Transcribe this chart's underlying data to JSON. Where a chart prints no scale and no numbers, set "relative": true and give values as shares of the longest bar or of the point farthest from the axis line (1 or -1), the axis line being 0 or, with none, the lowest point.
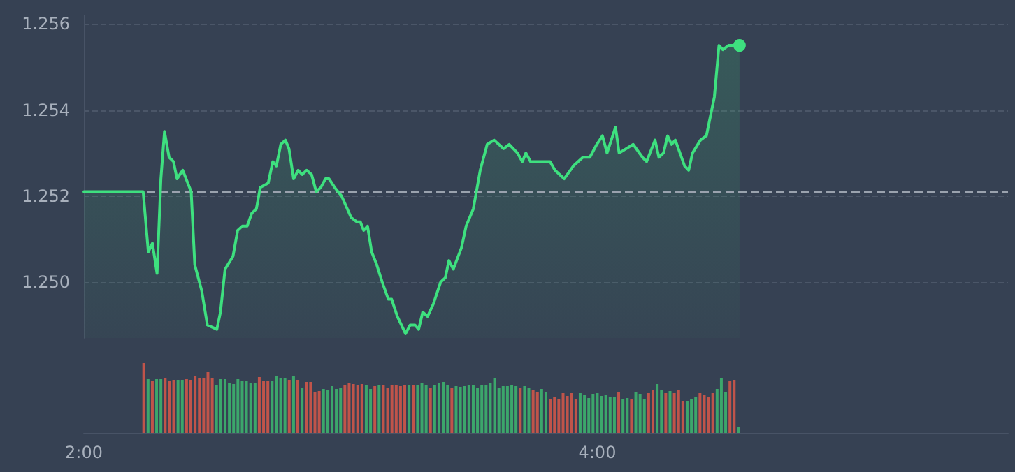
{
  "chart_data": [
    {
      "type": "area",
      "color": "#3ee07f",
      "tick_labels": "y",
      "grid": "y",
      "line_style": "solid",
      "xlim": [
        2,
        5.6
      ],
      "ylim": [
        1.2487,
        1.2562
      ],
      "yticks": [
        {
          "value": 1.25,
          "label": "1.250"
        },
        1.252,
        1.254,
        1.256
      ],
      "x": [
        2.0,
        2.231,
        2.251,
        2.267,
        2.285,
        2.3,
        2.314,
        2.332,
        2.349,
        2.363,
        2.385,
        2.418,
        2.432,
        2.459,
        2.481,
        2.518,
        2.532,
        2.55,
        2.581,
        2.599,
        2.617,
        2.636,
        2.654,
        2.672,
        2.687,
        2.718,
        2.736,
        2.75,
        2.767,
        2.785,
        2.799,
        2.817,
        2.835,
        2.85,
        2.868,
        2.887,
        2.905,
        2.923,
        2.941,
        2.955,
        2.977,
        3.004,
        3.041,
        3.063,
        3.077,
        3.09,
        3.105,
        3.121,
        3.141,
        3.162,
        3.186,
        3.199,
        3.221,
        3.253,
        3.271,
        3.29,
        3.304,
        3.32,
        3.339,
        3.362,
        3.39,
        3.408,
        3.422,
        3.439,
        3.471,
        3.489,
        3.517,
        3.544,
        3.571,
        3.598,
        3.635,
        3.657,
        3.689,
        3.708,
        3.722,
        3.74,
        3.771,
        3.789,
        3.816,
        3.835,
        3.871,
        3.907,
        3.944,
        3.971,
        3.998,
        4.02,
        4.038,
        4.071,
        4.085,
        4.14,
        4.176,
        4.192,
        4.225,
        4.24,
        4.258,
        4.274,
        4.289,
        4.304,
        4.322,
        4.34,
        4.356,
        4.371,
        4.402,
        4.425,
        4.456,
        4.474,
        4.489,
        4.511,
        4.554
      ],
      "values": [
        1.2521,
        1.2521,
        1.2507,
        1.2509,
        1.2502,
        1.2524,
        1.2535,
        1.2529,
        1.2528,
        1.2524,
        1.2526,
        1.2521,
        1.2504,
        1.2498,
        1.249,
        1.2489,
        1.2493,
        1.2503,
        1.2506,
        1.2512,
        1.2513,
        1.2513,
        1.2516,
        1.2517,
        1.2522,
        1.2523,
        1.2528,
        1.2527,
        1.2532,
        1.2533,
        1.2531,
        1.2524,
        1.2526,
        1.2525,
        1.2526,
        1.2525,
        1.2521,
        1.2522,
        1.2524,
        1.2524,
        1.2522,
        1.252,
        1.2515,
        1.2514,
        1.2514,
        1.2512,
        1.2513,
        1.2507,
        1.2504,
        1.25,
        1.2496,
        1.2496,
        1.2492,
        1.2488,
        1.249,
        1.249,
        1.2489,
        1.2493,
        1.2492,
        1.2495,
        1.25,
        1.2501,
        1.2505,
        1.2503,
        1.2508,
        1.2513,
        1.2517,
        1.2526,
        1.2532,
        1.2533,
        1.2531,
        1.2532,
        1.253,
        1.2528,
        1.253,
        1.2528,
        1.2528,
        1.2528,
        1.2528,
        1.2526,
        1.2524,
        1.2527,
        1.2529,
        1.2529,
        1.2532,
        1.2534,
        1.253,
        1.2536,
        1.253,
        1.2532,
        1.2529,
        1.2528,
        1.2533,
        1.2529,
        1.253,
        1.2534,
        1.2532,
        1.2533,
        1.253,
        1.2527,
        1.2526,
        1.253,
        1.2533,
        1.2534,
        1.2543,
        1.2555,
        1.2554,
        1.2555,
        1.2555
      ],
      "ref_lines": [
        {
          "axis": "y",
          "value": 1.2521,
          "color": "#9aa2ae",
          "line_style": "dashed"
        }
      ]
    },
    {
      "type": "bar",
      "relative": true,
      "tick_labels": "x",
      "xlim": [
        2,
        5.6
      ],
      "xticks": [
        {
          "value": 2,
          "label": "2:00"
        },
        {
          "value": 4,
          "label": "4:00"
        }
      ],
      "x": [
        2.2333,
        2.25,
        2.2667,
        2.2833,
        2.3,
        2.3167,
        2.3333,
        2.35,
        2.3667,
        2.3833,
        2.4,
        2.4167,
        2.4333,
        2.45,
        2.4667,
        2.4833,
        2.5,
        2.5167,
        2.5333,
        2.55,
        2.5667,
        2.5833,
        2.6,
        2.6167,
        2.6333,
        2.65,
        2.6667,
        2.6833,
        2.7,
        2.7167,
        2.7333,
        2.75,
        2.7667,
        2.7833,
        2.8,
        2.8167,
        2.8333,
        2.85,
        2.8667,
        2.8833,
        2.9,
        2.9167,
        2.9333,
        2.95,
        2.9667,
        2.9833,
        3,
        3.0167,
        3.0333,
        3.05,
        3.0667,
        3.0833,
        3.1,
        3.1167,
        3.1333,
        3.15,
        3.1667,
        3.1833,
        3.2,
        3.2167,
        3.2333,
        3.25,
        3.2667,
        3.2833,
        3.3,
        3.3167,
        3.3333,
        3.35,
        3.3667,
        3.3833,
        3.4,
        3.4167,
        3.4333,
        3.45,
        3.4667,
        3.4833,
        3.5,
        3.5167,
        3.5333,
        3.55,
        3.5667,
        3.5833,
        3.6,
        3.6167,
        3.6333,
        3.65,
        3.6667,
        3.6833,
        3.7,
        3.7167,
        3.7333,
        3.75,
        3.7667,
        3.7833,
        3.8,
        3.8167,
        3.8333,
        3.85,
        3.8667,
        3.8833,
        3.9,
        3.9167,
        3.9333,
        3.95,
        3.9667,
        3.9833,
        4,
        4.0167,
        4.0333,
        4.05,
        4.0667,
        4.0833,
        4.1,
        4.1167,
        4.1333,
        4.15,
        4.1667,
        4.1833,
        4.2,
        4.2167,
        4.2333,
        4.25,
        4.2667,
        4.2833,
        4.3,
        4.3167,
        4.3333,
        4.35,
        4.3667,
        4.3833,
        4.4,
        4.4167,
        4.4333,
        4.45,
        4.4667,
        4.4833,
        4.5,
        4.5167,
        4.5333,
        4.55
      ],
      "values": [
        1,
        0.77,
        0.74,
        0.77,
        0.77,
        0.79,
        0.75,
        0.76,
        0.76,
        0.76,
        0.77,
        0.76,
        0.81,
        0.78,
        0.78,
        0.87,
        0.79,
        0.69,
        0.77,
        0.77,
        0.72,
        0.7,
        0.77,
        0.74,
        0.74,
        0.72,
        0.72,
        0.8,
        0.74,
        0.74,
        0.74,
        0.81,
        0.78,
        0.78,
        0.76,
        0.82,
        0.76,
        0.65,
        0.73,
        0.73,
        0.58,
        0.6,
        0.63,
        0.62,
        0.67,
        0.63,
        0.65,
        0.69,
        0.72,
        0.7,
        0.69,
        0.7,
        0.68,
        0.63,
        0.67,
        0.69,
        0.69,
        0.64,
        0.68,
        0.68,
        0.67,
        0.69,
        0.68,
        0.69,
        0.69,
        0.71,
        0.69,
        0.65,
        0.68,
        0.72,
        0.73,
        0.69,
        0.65,
        0.67,
        0.66,
        0.67,
        0.69,
        0.68,
        0.65,
        0.68,
        0.69,
        0.72,
        0.78,
        0.64,
        0.67,
        0.67,
        0.68,
        0.67,
        0.64,
        0.67,
        0.65,
        0.61,
        0.58,
        0.63,
        0.58,
        0.48,
        0.51,
        0.48,
        0.57,
        0.53,
        0.57,
        0.48,
        0.57,
        0.54,
        0.5,
        0.56,
        0.57,
        0.53,
        0.54,
        0.52,
        0.51,
        0.59,
        0.49,
        0.5,
        0.48,
        0.59,
        0.56,
        0.48,
        0.57,
        0.61,
        0.7,
        0.61,
        0.57,
        0.6,
        0.57,
        0.62,
        0.45,
        0.46,
        0.49,
        0.52,
        0.57,
        0.54,
        0.51,
        0.57,
        0.63,
        0.78,
        0.59,
        0.74,
        0.76,
        0.09
      ],
      "colors": [
        "#c0544a",
        "#3ca66b",
        "#c0544a",
        "#3ca66b",
        "#3ca66b",
        "#c0544a",
        "#c0544a",
        "#c0544a",
        "#3ca66b",
        "#3ca66b",
        "#c0544a",
        "#c0544a",
        "#c0544a",
        "#c0544a",
        "#c0544a",
        "#c0544a",
        "#c0544a",
        "#3ca66b",
        "#3ca66b",
        "#3ca66b",
        "#3ca66b",
        "#3ca66b",
        "#3ca66b",
        "#3ca66b",
        "#3ca66b",
        "#3ca66b",
        "#3ca66b",
        "#c0544a",
        "#c0544a",
        "#c0544a",
        "#3ca66b",
        "#3ca66b",
        "#3ca66b",
        "#3ca66b",
        "#c0544a",
        "#3ca66b",
        "#c0544a",
        "#3ca66b",
        "#c0544a",
        "#c0544a",
        "#c0544a",
        "#c0544a",
        "#3ca66b",
        "#3ca66b",
        "#3ca66b",
        "#3ca66b",
        "#3ca66b",
        "#c0544a",
        "#c0544a",
        "#c0544a",
        "#c0544a",
        "#c0544a",
        "#3ca66b",
        "#3ca66b",
        "#c0544a",
        "#3ca66b",
        "#c0544a",
        "#c0544a",
        "#c0544a",
        "#c0544a",
        "#c0544a",
        "#c0544a",
        "#3ca66b",
        "#c0544a",
        "#3ca66b",
        "#3ca66b",
        "#3ca66b",
        "#c0544a",
        "#3ca66b",
        "#3ca66b",
        "#3ca66b",
        "#3ca66b",
        "#c0544a",
        "#3ca66b",
        "#3ca66b",
        "#3ca66b",
        "#3ca66b",
        "#3ca66b",
        "#3ca66b",
        "#3ca66b",
        "#3ca66b",
        "#3ca66b",
        "#3ca66b",
        "#3ca66b",
        "#3ca66b",
        "#3ca66b",
        "#3ca66b",
        "#3ca66b",
        "#c0544a",
        "#3ca66b",
        "#3ca66b",
        "#c0544a",
        "#c0544a",
        "#3ca66b",
        "#3ca66b",
        "#c0544a",
        "#c0544a",
        "#c0544a",
        "#c0544a",
        "#c0544a",
        "#c0544a",
        "#c0544a",
        "#3ca66b",
        "#3ca66b",
        "#3ca66b",
        "#3ca66b",
        "#3ca66b",
        "#3ca66b",
        "#3ca66b",
        "#3ca66b",
        "#3ca66b",
        "#c0544a",
        "#3ca66b",
        "#3ca66b",
        "#c0544a",
        "#3ca66b",
        "#3ca66b",
        "#3ca66b",
        "#c0544a",
        "#c0544a",
        "#3ca66b",
        "#3ca66b",
        "#c0544a",
        "#3ca66b",
        "#c0544a",
        "#c0544a",
        "#c0544a",
        "#3ca66b",
        "#3ca66b",
        "#3ca66b",
        "#c0544a",
        "#c0544a",
        "#c0544a",
        "#c0544a",
        "#3ca66b",
        "#3ca66b",
        "#3ca66b",
        "#c0544a",
        "#c0544a",
        "#3ca66b"
      ]
    }
  ]
}
